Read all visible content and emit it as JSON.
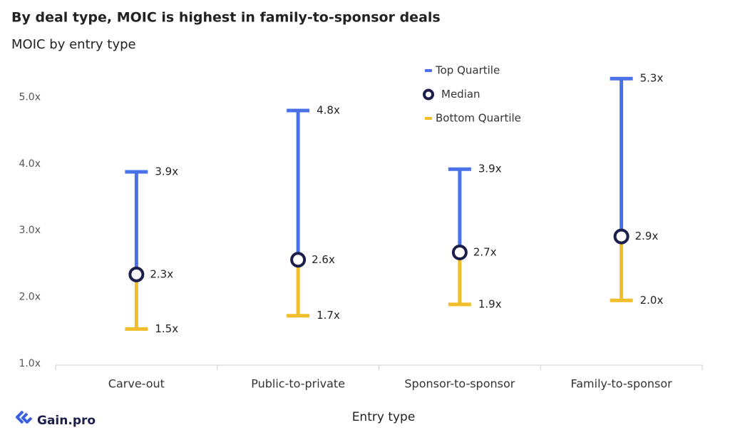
{
  "brand": "Gain.pro",
  "chart_data": {
    "type": "range",
    "title": "By deal type, MOIC is highest in family-to-sponsor deals",
    "subtitle": "MOIC by entry type",
    "x_label": "Entry type",
    "categories": [
      "Carve-out",
      "Public-to-private",
      "Sponsor-to-sponsor",
      "Family-to-sponsor"
    ],
    "series": [
      {
        "name": "Top Quartile",
        "color": "#4a72e8",
        "values": [
          3.88,
          4.8,
          3.92,
          5.28
        ],
        "value_labels": [
          "3.9x",
          "4.8x",
          "3.9x",
          "5.3x"
        ]
      },
      {
        "name": "Median",
        "color": "#1b1f4a",
        "values": [
          2.34,
          2.56,
          2.67,
          2.91
        ],
        "value_labels": [
          "2.3x",
          "2.6x",
          "2.7x",
          "2.9x"
        ]
      },
      {
        "name": "Bottom Quartile",
        "color": "#f0be2a",
        "values": [
          1.52,
          1.72,
          1.89,
          1.95
        ],
        "value_labels": [
          "1.5x",
          "1.7x",
          "1.9x",
          "2.0x"
        ]
      }
    ],
    "ylim": [
      1,
      5.4
    ],
    "yticks": [
      {
        "value": 1,
        "label": "1.0x"
      },
      {
        "value": 2,
        "label": "2.0x"
      },
      {
        "value": 3,
        "label": "3.0x"
      },
      {
        "value": 4,
        "label": "4.0x"
      },
      {
        "value": 5,
        "label": "5.0x"
      }
    ],
    "grid": false,
    "legend": "top-right"
  }
}
